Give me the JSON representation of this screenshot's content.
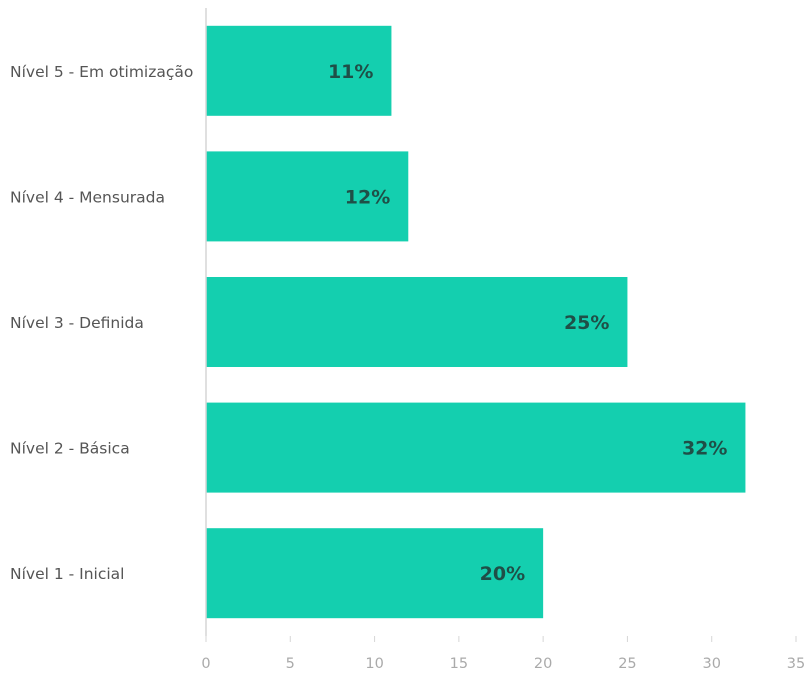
{
  "chart_data": {
    "type": "bar",
    "orientation": "horizontal",
    "categories": [
      "Nível 5 - Em otimização",
      "Nível 4 - Mensurada",
      "Nível 3 - Definida",
      "Nível 2 - Básica",
      "Nível 1 - Inicial"
    ],
    "values": [
      11,
      12,
      25,
      32,
      20
    ],
    "data_labels": [
      "11%",
      "12%",
      "25%",
      "32%",
      "20%"
    ],
    "x_ticks": [
      "0",
      "5",
      "10",
      "15",
      "20",
      "25",
      "30",
      "35"
    ],
    "xlim": [
      0,
      35
    ],
    "title": "",
    "xlabel": "",
    "ylabel": "",
    "grid": false,
    "legend": "none",
    "colors": {
      "bar": "#14CFAF",
      "data_label": "#1f4f47",
      "axis": "#d6d6d6",
      "tick_label": "#aaaaaa",
      "category_label": "#555555"
    }
  }
}
